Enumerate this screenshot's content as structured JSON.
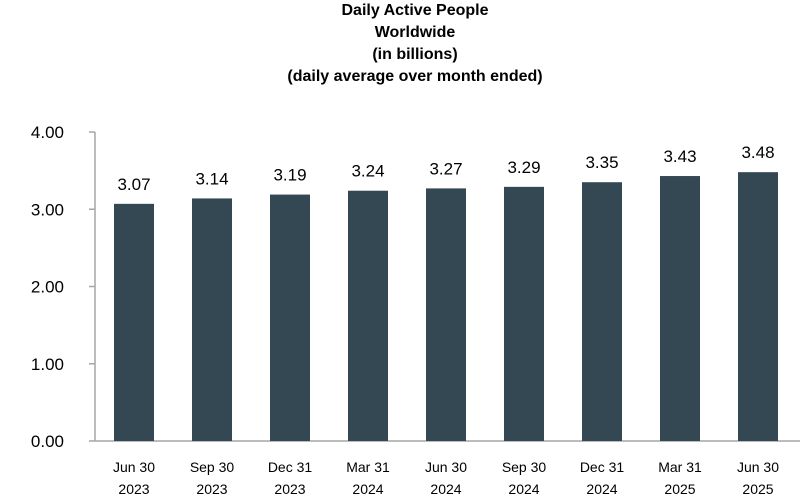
{
  "chart_data": {
    "type": "bar",
    "title_lines": [
      "Daily Active People",
      "Worldwide",
      "(in billions)",
      "(daily average over month ended)"
    ],
    "categories": [
      [
        "Jun 30",
        "2023"
      ],
      [
        "Sep 30",
        "2023"
      ],
      [
        "Dec 31",
        "2023"
      ],
      [
        "Mar 31",
        "2024"
      ],
      [
        "Jun 30",
        "2024"
      ],
      [
        "Sep 30",
        "2024"
      ],
      [
        "Dec 31",
        "2024"
      ],
      [
        "Mar 31",
        "2025"
      ],
      [
        "Jun 30",
        "2025"
      ]
    ],
    "values": [
      3.07,
      3.14,
      3.19,
      3.24,
      3.27,
      3.29,
      3.35,
      3.43,
      3.48
    ],
    "data_labels": [
      "3.07",
      "3.14",
      "3.19",
      "3.24",
      "3.27",
      "3.29",
      "3.35",
      "3.43",
      "3.48"
    ],
    "yticks": [
      "0.00",
      "1.00",
      "2.00",
      "3.00",
      "4.00"
    ],
    "ylim": [
      0,
      4
    ],
    "bar_color": "#344853",
    "axis_color": "#a6a6a6",
    "grid": false,
    "legend": "none"
  }
}
